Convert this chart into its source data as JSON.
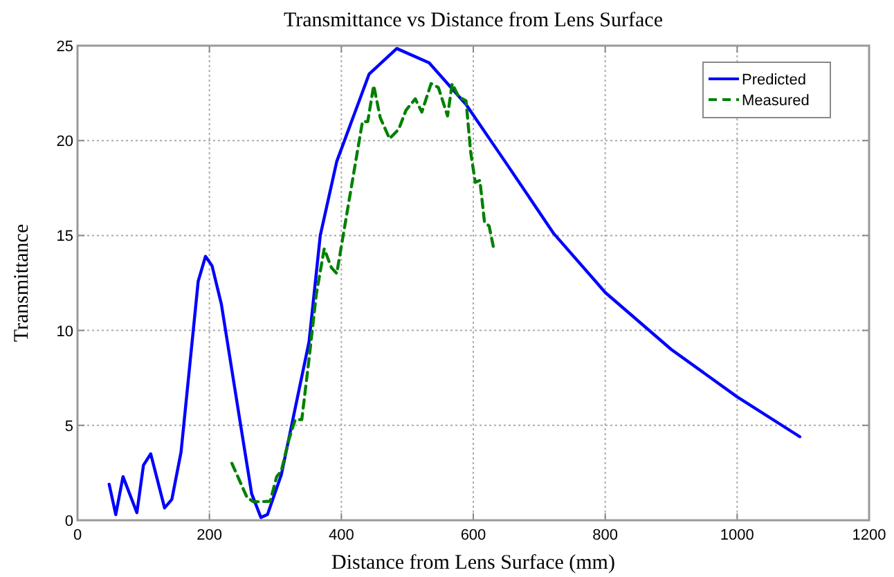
{
  "chart_data": {
    "type": "line",
    "title": "Transmittance vs Distance from Lens Surface",
    "xlabel": "Distance from Lens Surface (mm)",
    "ylabel": "Transmittance",
    "xlim": [
      0,
      1200
    ],
    "xticks": [
      0,
      200,
      400,
      600,
      800,
      1000,
      1200
    ],
    "ylim": [
      0,
      25
    ],
    "yticks": [
      0,
      5,
      10,
      15,
      20,
      25
    ],
    "grid": true,
    "legend": "top right",
    "series": [
      {
        "name": "Predicted",
        "color": "#0000ff",
        "line_style": "solid",
        "x": [
          48,
          58,
          69,
          90,
          100,
          111,
          132,
          143,
          157,
          183,
          194,
          204,
          218,
          246,
          264,
          278,
          288,
          309,
          351,
          368,
          393,
          442,
          484,
          533,
          589,
          652,
          722,
          785,
          800,
          900,
          1000,
          1095
        ],
        "values": [
          1.9,
          0.3,
          2.3,
          0.4,
          2.9,
          3.5,
          0.65,
          1.1,
          3.6,
          12.6,
          13.9,
          13.4,
          11.4,
          5.3,
          1.4,
          0.15,
          0.3,
          2.4,
          9.4,
          15.0,
          18.9,
          23.5,
          24.85,
          24.1,
          21.9,
          18.7,
          15.1,
          12.6,
          12.0,
          9.0,
          6.5,
          4.4
        ]
      },
      {
        "name": "Measured",
        "color": "#008000",
        "line_style": "dashed",
        "x": [
          234,
          257,
          267,
          292,
          302,
          309,
          320,
          330,
          340,
          351,
          362,
          374,
          385,
          393,
          411,
          432,
          440,
          449,
          459,
          473,
          487,
          498,
          512,
          522,
          536,
          547,
          561,
          568,
          578,
          589,
          596,
          603,
          610,
          617,
          624,
          631
        ],
        "values": [
          3.0,
          1.2,
          0.97,
          1.0,
          2.3,
          2.6,
          4.2,
          5.3,
          5.3,
          8.5,
          11.9,
          14.3,
          13.3,
          13.0,
          16.7,
          21.0,
          21.0,
          22.9,
          21.2,
          20.1,
          20.6,
          21.6,
          22.2,
          21.5,
          23.0,
          22.8,
          21.3,
          23.0,
          22.3,
          22.1,
          19.4,
          17.8,
          17.9,
          15.7,
          15.5,
          14.3
        ]
      }
    ]
  }
}
